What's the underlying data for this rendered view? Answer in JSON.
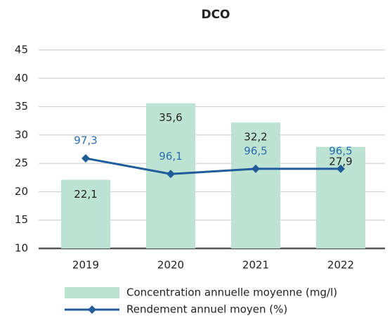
{
  "chart_data": {
    "type": "bar_line",
    "title": "DCO",
    "categories": [
      "2019",
      "2020",
      "2021",
      "2022"
    ],
    "series": [
      {
        "name": "Concentration annuelle moyenne (mg/l)",
        "type": "bar",
        "color": "#bde3d2",
        "values": [
          22.1,
          35.6,
          32.2,
          27.9
        ],
        "value_labels": [
          "22,1",
          "35,6",
          "32,2",
          "27,9"
        ]
      },
      {
        "name": "Rendement annuel moyen (%)",
        "type": "line",
        "axis": "y2",
        "color": "#1f5c99",
        "values": [
          97.3,
          96.1,
          96.5,
          96.5
        ],
        "value_labels": [
          "97,3",
          "96,1",
          "96,5",
          "96,5"
        ]
      }
    ],
    "ylim": [
      10,
      45
    ],
    "yticks": [
      10,
      15,
      20,
      25,
      30,
      35,
      40,
      45
    ],
    "y2lim": [
      90.4,
      105.6
    ],
    "grid": true
  }
}
